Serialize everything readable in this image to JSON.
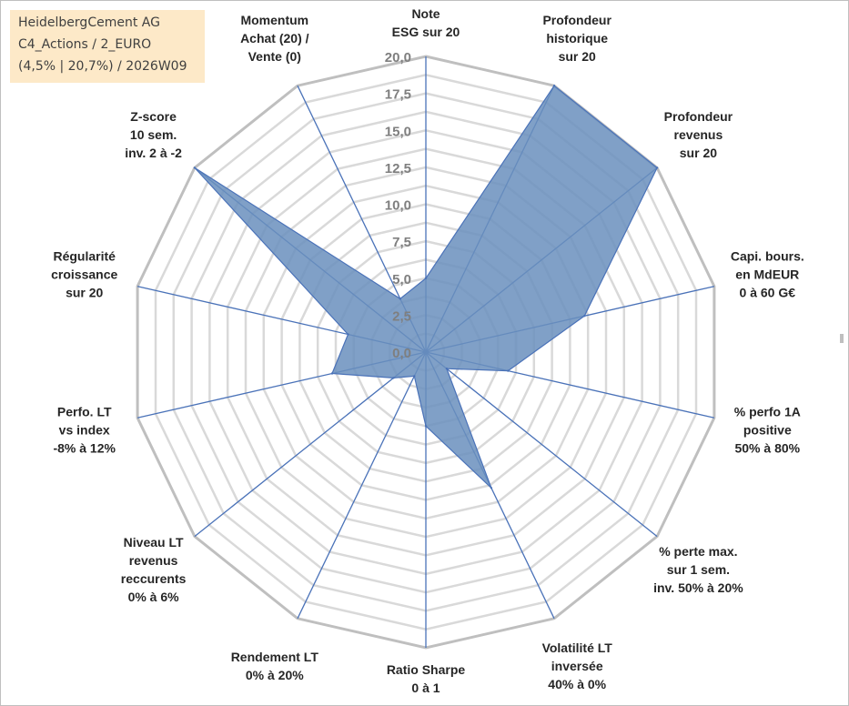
{
  "info_box": {
    "line1": "HeidelbergCement AG",
    "line2": "C4_Actions / 2_EURO",
    "line3": "(4,5% | 20,7%) / 2026W09"
  },
  "colors": {
    "fill": "#6a8fbd",
    "stroke": "#4a72b8",
    "grid": "#d9d9d9",
    "ring_outer": "#bfbfbf",
    "label": "#262626",
    "tick": "#7f7f7f",
    "info_bg": "#fde9c8"
  },
  "chart_data": {
    "type": "radar",
    "title": "",
    "rmin": 0,
    "rmax": 20,
    "grid_step": 1.25,
    "ticks": [
      "0,0",
      "2,5",
      "5,0",
      "7,5",
      "10,0",
      "12,5",
      "15,0",
      "17,5",
      "20,0"
    ],
    "tick_values": [
      0,
      2.5,
      5,
      7.5,
      10,
      12.5,
      15,
      17.5,
      20
    ],
    "categories": [
      [
        "Note",
        "ESG sur 20"
      ],
      [
        "Profondeur",
        "historique",
        "sur 20"
      ],
      [
        "Profondeur",
        "revenus",
        "sur 20"
      ],
      [
        "Capi. bours.",
        "en MdEUR",
        "0 à 60 G€"
      ],
      [
        "% perfo 1A",
        "positive",
        "50% à 80%"
      ],
      [
        "% perte max.",
        "sur 1 sem.",
        "inv. 50% à 20%"
      ],
      [
        "Volatilité LT",
        "inversée",
        "40% à 0%"
      ],
      [
        "Ratio Sharpe",
        "0 à 1"
      ],
      [
        "Rendement LT",
        "0% à 20%"
      ],
      [
        "Niveau LT",
        "revenus",
        "reccurents",
        "0% à 6%"
      ],
      [
        "Perfo. LT",
        "vs index",
        "-8% à 12%"
      ],
      [
        "Régularité",
        "croissance",
        "sur 20"
      ],
      [
        "Z-score",
        "10 sem.",
        "inv. 2 à -2"
      ],
      [
        "Momentum",
        "Achat (20) /",
        "Vente (0)"
      ]
    ],
    "series": [
      {
        "name": "HeidelbergCement AG",
        "values": [
          5.0,
          20.0,
          20.0,
          11.0,
          5.7,
          1.8,
          10.2,
          5.0,
          1.8,
          2.8,
          6.5,
          5.4,
          20.0,
          4.0
        ]
      }
    ]
  }
}
